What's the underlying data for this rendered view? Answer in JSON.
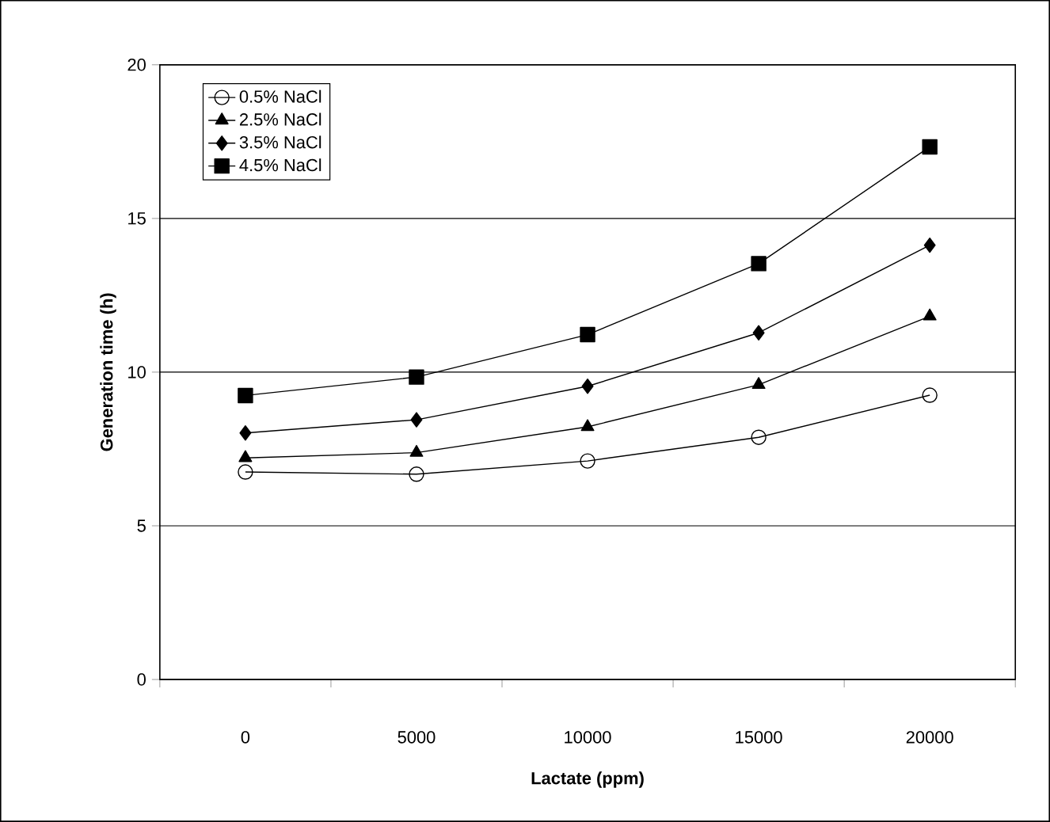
{
  "chart_data": {
    "type": "line",
    "xlabel": "Lactate (ppm)",
    "ylabel": "Generation time (h)",
    "categories": [
      "0",
      "5000",
      "10000",
      "15000",
      "20000"
    ],
    "series": [
      {
        "name": "0.5% NaCl",
        "color": "#000000",
        "marker": "circle",
        "values": [
          6.75,
          6.68,
          7.11,
          7.88,
          9.25
        ]
      },
      {
        "name": "2.5% NaCl",
        "color": "#000000",
        "marker": "triangle",
        "values": [
          7.21,
          7.38,
          8.22,
          9.59,
          11.82
        ]
      },
      {
        "name": "3.5% NaCl",
        "color": "#000000",
        "marker": "diamond",
        "values": [
          8.02,
          8.45,
          9.54,
          11.28,
          14.13
        ]
      },
      {
        "name": "4.5% NaCl",
        "color": "#000000",
        "marker": "square",
        "values": [
          9.24,
          9.84,
          11.22,
          13.53,
          17.33
        ]
      }
    ],
    "ylim": [
      0,
      20
    ],
    "yticks": [
      0,
      5,
      10,
      15,
      20
    ],
    "grid": "y",
    "legend": "top left",
    "line_style": "solid"
  }
}
